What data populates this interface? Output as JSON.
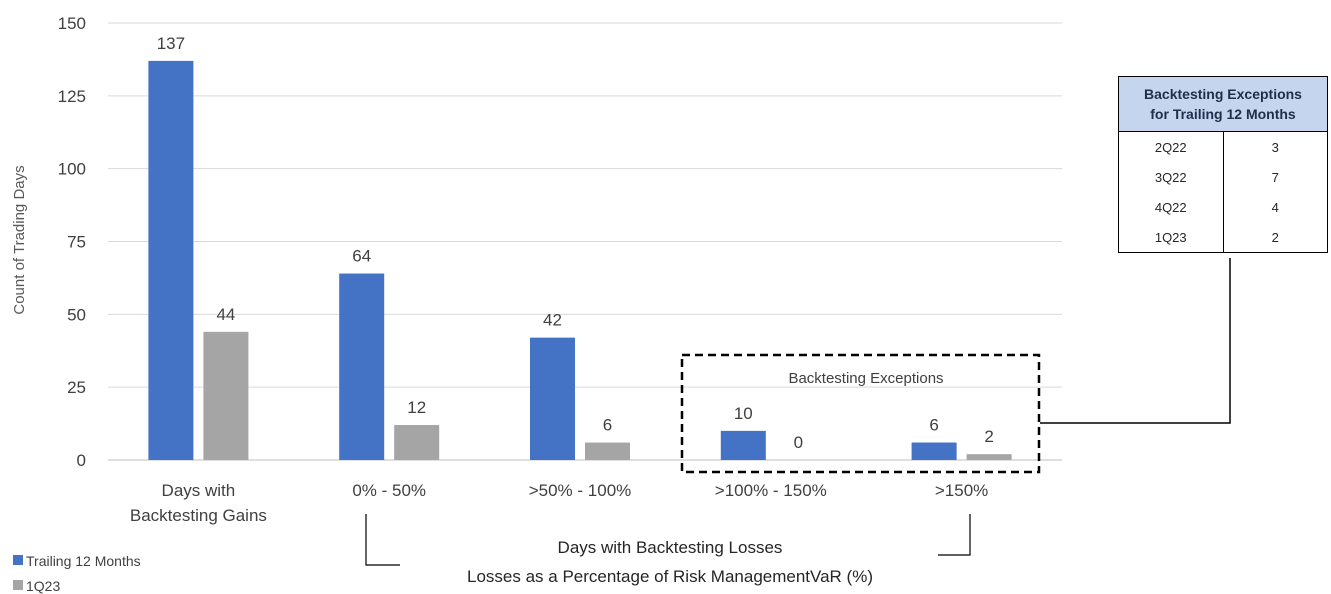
{
  "chart_data": {
    "type": "bar",
    "categories": [
      "Days with\nBacktesting Gains",
      "0% - 50%",
      ">50% - 100%",
      ">100% - 150%",
      ">150%"
    ],
    "series": [
      {
        "name": "Trailing 12 Months",
        "values": [
          137,
          64,
          42,
          10,
          6
        ],
        "color": "#4472c4"
      },
      {
        "name": "1Q23",
        "values": [
          44,
          12,
          6,
          0,
          2
        ],
        "color": "#a5a5a5"
      }
    ],
    "ylabel": "Count of Trading Days",
    "ylim": [
      0,
      150
    ],
    "yticks": [
      0,
      25,
      50,
      75,
      100,
      125,
      150
    ],
    "grid": true,
    "legend_position": "bottom-left",
    "annotations": {
      "exceptions_box_label": "Backtesting Exceptions",
      "losses_caption_line1": "Days with Backtesting Losses",
      "losses_caption_line2": "Losses as a Percentage of Risk ManagementVaR (%)"
    }
  },
  "exceptions_table": {
    "header_line1": "Backtesting Exceptions",
    "header_line2": "for Trailing 12 Months",
    "rows": [
      {
        "quarter": "2Q22",
        "count": "3"
      },
      {
        "quarter": "3Q22",
        "count": "7"
      },
      {
        "quarter": "4Q22",
        "count": "4"
      },
      {
        "quarter": "1Q23",
        "count": "2"
      }
    ]
  }
}
